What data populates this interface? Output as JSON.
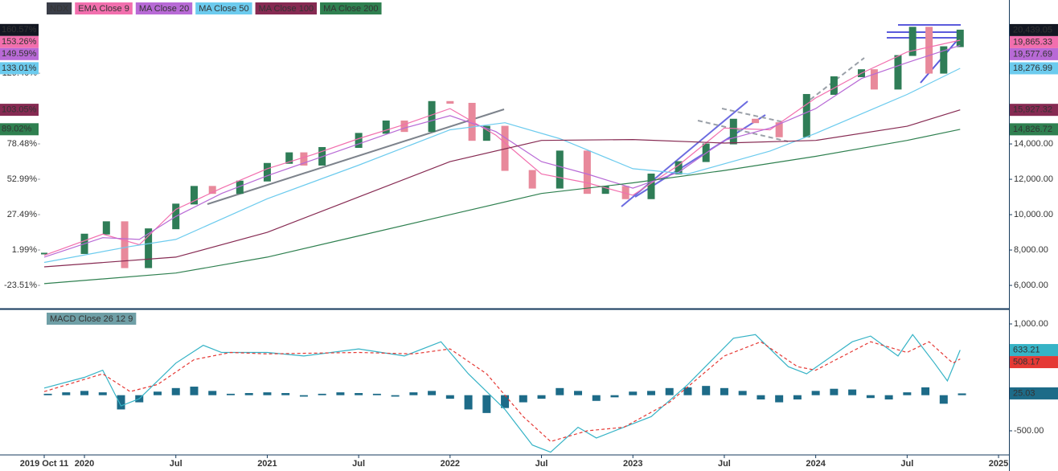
{
  "chart_data": [
    {
      "type": "line",
      "xlim": [
        2019.758,
        2025.057
      ],
      "ylim": [
        4730,
        22140
      ],
      "yticks": [
        {
          "value": 6000,
          "label": "6,000.00"
        },
        {
          "value": 8000,
          "label": "8,000.00"
        },
        {
          "value": 10000,
          "label": "10,000.00"
        },
        {
          "value": 12000,
          "label": "12,000.00"
        },
        {
          "value": 14000,
          "label": "14,000.00"
        }
      ],
      "y2lim": [
        -39.7,
        182.18
      ],
      "y2ticks": [
        {
          "value": -23.51,
          "label": "-23.51%"
        },
        {
          "value": 1.99,
          "label": "1.99%"
        },
        {
          "value": 27.49,
          "label": "27.49%"
        },
        {
          "value": 52.99,
          "label": "52.99%"
        },
        {
          "value": 78.48,
          "label": "78.48%"
        },
        {
          "value": 129.4,
          "label": "129.40%"
        }
      ],
      "legend": "top-left",
      "series": [
        {
          "name": "NDX",
          "style": "candle",
          "color": "#131722",
          "up_color": "#2f7d57",
          "down_color": "#e8899b",
          "x": [
            2019.78,
            2020.0,
            2020.12,
            2020.22,
            2020.35,
            2020.5,
            2020.6,
            2020.7,
            2020.85,
            2021.0,
            2021.12,
            2021.2,
            2021.3,
            2021.5,
            2021.65,
            2021.75,
            2021.9,
            2022.0,
            2022.12,
            2022.2,
            2022.3,
            2022.45,
            2022.6,
            2022.75,
            2022.85,
            2022.96,
            2023.1,
            2023.25,
            2023.4,
            2023.55,
            2023.67,
            2023.8,
            2023.95,
            2024.1,
            2024.25,
            2024.32,
            2024.45,
            2024.53,
            2024.62,
            2024.7,
            2024.79
          ],
          "values": [
            7800,
            8900,
            9600,
            7000,
            9200,
            10600,
            11600,
            11200,
            11900,
            12900,
            13500,
            12800,
            13800,
            14600,
            15300,
            14700,
            16400,
            16300,
            14200,
            15000,
            12500,
            11500,
            13600,
            11200,
            11600,
            10900,
            12300,
            13000,
            14000,
            15400,
            15200,
            14400,
            16800,
            17800,
            18200,
            17100,
            19000,
            20600,
            18000,
            19500,
            20439.05
          ],
          "last": {
            "value": 20439.05,
            "label": "20,439.05"
          },
          "last_pct": {
            "value": 160.57,
            "label": "160.57%"
          }
        },
        {
          "name": "EMA Close 9",
          "style": "line",
          "color": "#f26fae",
          "x": [
            2019.78,
            2020.1,
            2020.3,
            2020.5,
            2020.75,
            2021.0,
            2021.25,
            2021.5,
            2021.75,
            2022.0,
            2022.25,
            2022.5,
            2022.75,
            2023.0,
            2023.25,
            2023.5,
            2023.75,
            2024.0,
            2024.25,
            2024.5,
            2024.79
          ],
          "values": [
            7700,
            8900,
            8300,
            10300,
            11500,
            12600,
            13400,
            14300,
            15100,
            16000,
            14500,
            12300,
            11800,
            11100,
            12800,
            14900,
            14800,
            16600,
            18000,
            19200,
            19865.33
          ],
          "last": {
            "value": 19865.33,
            "label": "19,865.33"
          },
          "last_pct": {
            "value": 153.26,
            "label": "153.26%"
          }
        },
        {
          "name": "MA Close 20",
          "style": "line",
          "color": "#b86ad6",
          "x": [
            2019.78,
            2020.1,
            2020.3,
            2020.5,
            2020.75,
            2021.0,
            2021.25,
            2021.5,
            2021.75,
            2022.0,
            2022.25,
            2022.5,
            2022.75,
            2023.0,
            2023.25,
            2023.5,
            2023.75,
            2024.0,
            2024.25,
            2024.5,
            2024.79
          ],
          "values": [
            7600,
            8700,
            8600,
            9900,
            11200,
            12200,
            13100,
            14000,
            14900,
            15600,
            14700,
            13000,
            12300,
            11500,
            12400,
            14200,
            14900,
            16000,
            17700,
            18600,
            19577.69
          ],
          "last": {
            "value": 19577.69,
            "label": "19,577.69"
          },
          "last_pct": {
            "value": 149.59,
            "label": "149.59%"
          }
        },
        {
          "name": "MA Close 50",
          "style": "line",
          "color": "#6ccbee",
          "x": [
            2019.78,
            2020.25,
            2020.5,
            2021.0,
            2021.5,
            2022.0,
            2022.3,
            2022.6,
            2023.0,
            2023.3,
            2023.75,
            2024.0,
            2024.5,
            2024.79
          ],
          "values": [
            7300,
            8200,
            8600,
            10900,
            12800,
            14800,
            15200,
            14300,
            12600,
            12300,
            13600,
            14600,
            16800,
            18276.99
          ],
          "last": {
            "value": 18276.99,
            "label": "18,276.99"
          },
          "last_pct": {
            "value": 133.01,
            "label": "133.01%"
          }
        },
        {
          "name": "MA Close 100",
          "style": "line",
          "color": "#862a52",
          "x": [
            2019.78,
            2020.5,
            2021.0,
            2021.5,
            2022.0,
            2022.5,
            2023.0,
            2023.5,
            2024.0,
            2024.5,
            2024.79
          ],
          "values": [
            7050,
            7600,
            9000,
            11000,
            13000,
            14200,
            14250,
            14050,
            14200,
            15000,
            15927.32
          ],
          "last": {
            "value": 15927.32,
            "label": "15,927.32"
          },
          "last_pct": {
            "value": 103.05,
            "label": "103.05%"
          }
        },
        {
          "name": "MA Close 200",
          "style": "line",
          "color": "#2f8050",
          "x": [
            2019.78,
            2020.5,
            2021.0,
            2021.5,
            2022.0,
            2022.5,
            2023.0,
            2023.5,
            2024.0,
            2024.5,
            2024.79
          ],
          "values": [
            6100,
            6700,
            7600,
            8800,
            10000,
            11200,
            11800,
            12500,
            13300,
            14200,
            14826.72
          ],
          "last": {
            "value": 14826.72,
            "label": "14,826.72"
          },
          "last_pct": {
            "value": 89.02,
            "label": "89.02%"
          }
        }
      ]
    },
    {
      "type": "line",
      "title": "MACD Close 26 12 9",
      "xlim": [
        2019.758,
        2025.057
      ],
      "xticks": [
        {
          "value": 2019.78,
          "label": "2019 Oct 11"
        },
        2020,
        {
          "value": 2020.5,
          "label": "Jul"
        },
        2021,
        {
          "value": 2021.5,
          "label": "Jul"
        },
        2022,
        {
          "value": 2022.5,
          "label": "Jul"
        },
        2023,
        {
          "value": 2023.5,
          "label": "Jul"
        },
        2024,
        {
          "value": 2024.5,
          "label": "Jul"
        },
        2025
      ],
      "ylim": [
        -827,
        1192
      ],
      "yticks": [
        {
          "value": -500,
          "label": "-500.00"
        },
        {
          "value": 1000,
          "label": "1,000.00"
        }
      ],
      "series": [
        {
          "style": "histogram",
          "color": "#1d6b88",
          "x": [
            2019.8,
            2019.9,
            2020.0,
            2020.1,
            2020.2,
            2020.3,
            2020.4,
            2020.5,
            2020.6,
            2020.7,
            2020.8,
            2020.9,
            2021.0,
            2021.1,
            2021.2,
            2021.3,
            2021.4,
            2021.5,
            2021.6,
            2021.7,
            2021.8,
            2021.9,
            2022.0,
            2022.1,
            2022.2,
            2022.3,
            2022.4,
            2022.5,
            2022.6,
            2022.7,
            2022.8,
            2022.9,
            2023.0,
            2023.1,
            2023.2,
            2023.3,
            2023.4,
            2023.5,
            2023.6,
            2023.7,
            2023.8,
            2023.9,
            2024.0,
            2024.1,
            2024.2,
            2024.3,
            2024.4,
            2024.5,
            2024.6,
            2024.7,
            2024.8
          ],
          "values": [
            20,
            40,
            60,
            40,
            -200,
            -100,
            50,
            100,
            120,
            60,
            20,
            30,
            40,
            30,
            -20,
            20,
            40,
            30,
            20,
            -20,
            40,
            60,
            -50,
            -200,
            -250,
            -180,
            -100,
            -50,
            100,
            60,
            -80,
            -30,
            50,
            60,
            100,
            110,
            130,
            100,
            60,
            -60,
            -100,
            -60,
            60,
            90,
            80,
            -40,
            -60,
            40,
            110,
            -120,
            25.03
          ],
          "last": 25.03
        },
        {
          "style": "line",
          "color": "#36b3c6",
          "x": [
            2019.78,
            2020.0,
            2020.1,
            2020.2,
            2020.3,
            2020.5,
            2020.65,
            2020.75,
            2021.0,
            2021.2,
            2021.5,
            2021.75,
            2021.95,
            2022.1,
            2022.3,
            2022.45,
            2022.55,
            2022.7,
            2022.8,
            2022.95,
            2023.1,
            2023.3,
            2023.55,
            2023.67,
            2023.85,
            2023.95,
            2024.2,
            2024.3,
            2024.45,
            2024.53,
            2024.65,
            2024.72,
            2024.79
          ],
          "values": [
            100,
            250,
            350,
            -150,
            -50,
            450,
            700,
            600,
            600,
            550,
            650,
            550,
            750,
            300,
            -200,
            -700,
            -800,
            -450,
            -600,
            -450,
            -300,
            150,
            800,
            850,
            400,
            300,
            750,
            830,
            550,
            850,
            450,
            200,
            633.21
          ],
          "last": 633.21
        },
        {
          "style": "line",
          "dashed": true,
          "color": "#e53935",
          "x": [
            2019.78,
            2020.1,
            2020.25,
            2020.4,
            2020.6,
            2020.8,
            2021.0,
            2021.5,
            2021.8,
            2022.0,
            2022.2,
            2022.4,
            2022.55,
            2022.75,
            2022.95,
            2023.2,
            2023.5,
            2023.7,
            2023.9,
            2024.0,
            2024.3,
            2024.5,
            2024.62,
            2024.75,
            2024.79
          ],
          "values": [
            50,
            300,
            50,
            150,
            500,
            600,
            580,
            600,
            580,
            650,
            300,
            -300,
            -650,
            -500,
            -450,
            -100,
            550,
            750,
            400,
            350,
            750,
            600,
            750,
            450,
            508.17
          ],
          "last": 508.17
        }
      ]
    }
  ]
}
